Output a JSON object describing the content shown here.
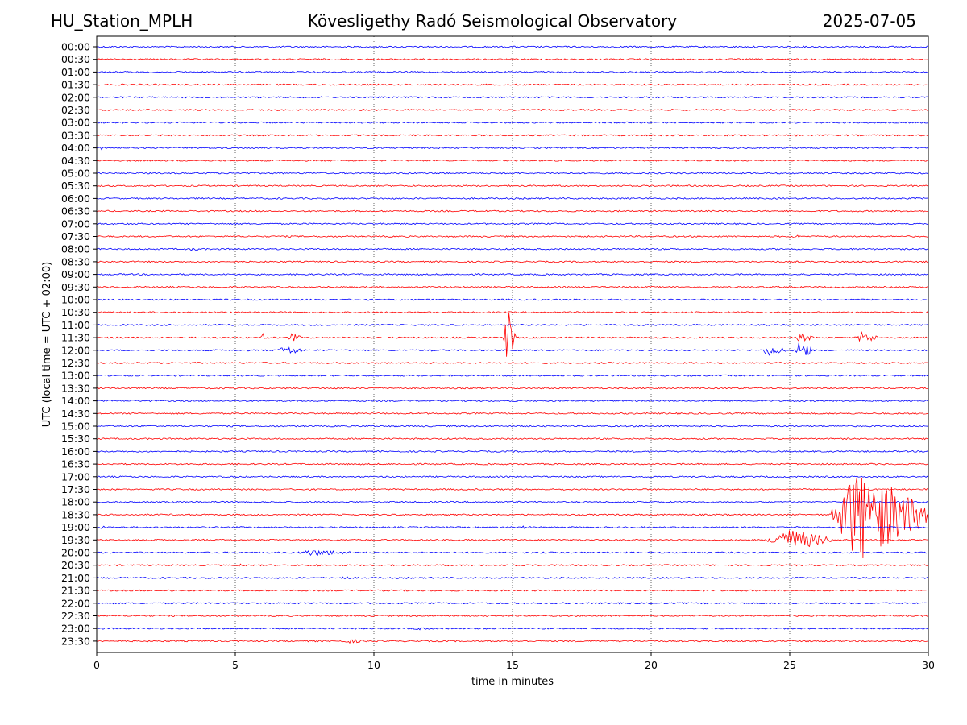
{
  "header": {
    "station": "HU_Station_MPLH",
    "title": "Kövesligethy Radó Seismological Observatory",
    "date": "2025-07-05"
  },
  "colors": {
    "trace_a": "#0000ff",
    "trace_b": "#ff0000",
    "grid": "#000000",
    "axes": "#000000"
  },
  "chart_data": {
    "type": "line",
    "title": "Kövesligethy Radó Seismological Observatory",
    "xlabel": "time in minutes",
    "ylabel": "UTC (local time = UTC + 02:00)",
    "xlim": [
      0,
      30
    ],
    "xticks": [
      0,
      5,
      10,
      15,
      20,
      25,
      30
    ],
    "vertical_grid_at": [
      5,
      10,
      15,
      20,
      25
    ],
    "grid": "dotted vertical",
    "rows": [
      "00:00",
      "00:30",
      "01:00",
      "01:30",
      "02:00",
      "02:30",
      "03:00",
      "03:30",
      "04:00",
      "04:30",
      "05:00",
      "05:30",
      "06:00",
      "06:30",
      "07:00",
      "07:30",
      "08:00",
      "08:30",
      "09:00",
      "09:30",
      "10:00",
      "10:30",
      "11:00",
      "11:30",
      "12:00",
      "12:30",
      "13:00",
      "13:30",
      "14:00",
      "14:30",
      "15:00",
      "15:30",
      "16:00",
      "16:30",
      "17:00",
      "17:30",
      "18:00",
      "18:30",
      "19:00",
      "19:30",
      "20:00",
      "20:30",
      "21:00",
      "21:30",
      "22:00",
      "22:30",
      "23:00",
      "23:30"
    ],
    "row_colors": [
      "blue",
      "red"
    ],
    "events": [
      {
        "row": "03:00",
        "t_start": 10.0,
        "t_end": 10.2,
        "amp": 1.8
      },
      {
        "row": "04:00",
        "t_start": 0.05,
        "t_end": 0.35,
        "amp": 2.5
      },
      {
        "row": "07:30",
        "t_start": 25.0,
        "t_end": 25.5,
        "amp": 2.5
      },
      {
        "row": "08:00",
        "t_start": 3.3,
        "t_end": 3.9,
        "amp": 2.0
      },
      {
        "row": "11:30",
        "t_start": 5.95,
        "t_end": 6.05,
        "amp": 10
      },
      {
        "row": "11:30",
        "t_start": 6.9,
        "t_end": 7.4,
        "amp": 6
      },
      {
        "row": "11:30",
        "t_start": 14.7,
        "t_end": 15.1,
        "amp": 40
      },
      {
        "row": "11:30",
        "t_start": 25.2,
        "t_end": 25.9,
        "amp": 6
      },
      {
        "row": "11:30",
        "t_start": 27.4,
        "t_end": 28.2,
        "amp": 8
      },
      {
        "row": "12:00",
        "t_start": 6.5,
        "t_end": 7.6,
        "amp": 6
      },
      {
        "row": "12:00",
        "t_start": 12.0,
        "t_end": 12.2,
        "amp": 2
      },
      {
        "row": "12:00",
        "t_start": 24.0,
        "t_end": 24.9,
        "amp": 8
      },
      {
        "row": "12:00",
        "t_start": 25.2,
        "t_end": 25.8,
        "amp": 15
      },
      {
        "row": "15:30",
        "t_start": 25.0,
        "t_end": 25.2,
        "amp": 1.5
      },
      {
        "row": "18:30",
        "t_start": 26.5,
        "t_end": 30.0,
        "amp": 60
      },
      {
        "row": "19:00",
        "t_start": 0.0,
        "t_end": 0.6,
        "amp": 2
      },
      {
        "row": "19:00",
        "t_start": 15.3,
        "t_end": 15.7,
        "amp": 2
      },
      {
        "row": "19:30",
        "t_start": 3.8,
        "t_end": 4.1,
        "amp": 1.8
      },
      {
        "row": "19:30",
        "t_start": 24.2,
        "t_end": 26.5,
        "amp": 15
      },
      {
        "row": "20:00",
        "t_start": 7.1,
        "t_end": 9.5,
        "amp": 4
      },
      {
        "row": "20:30",
        "t_start": 5.0,
        "t_end": 5.6,
        "amp": 2
      },
      {
        "row": "20:30",
        "t_start": 7.8,
        "t_end": 8.3,
        "amp": 1.5
      },
      {
        "row": "21:00",
        "t_start": 8.7,
        "t_end": 9.3,
        "amp": 2.5
      },
      {
        "row": "21:30",
        "t_start": 2.3,
        "t_end": 3.5,
        "amp": 1.5
      },
      {
        "row": "22:30",
        "t_start": 24.8,
        "t_end": 25.4,
        "amp": 1.5
      },
      {
        "row": "23:00",
        "t_start": 11.2,
        "t_end": 12.3,
        "amp": 2
      },
      {
        "row": "23:30",
        "t_start": 8.8,
        "t_end": 10.0,
        "amp": 2.5
      }
    ]
  }
}
